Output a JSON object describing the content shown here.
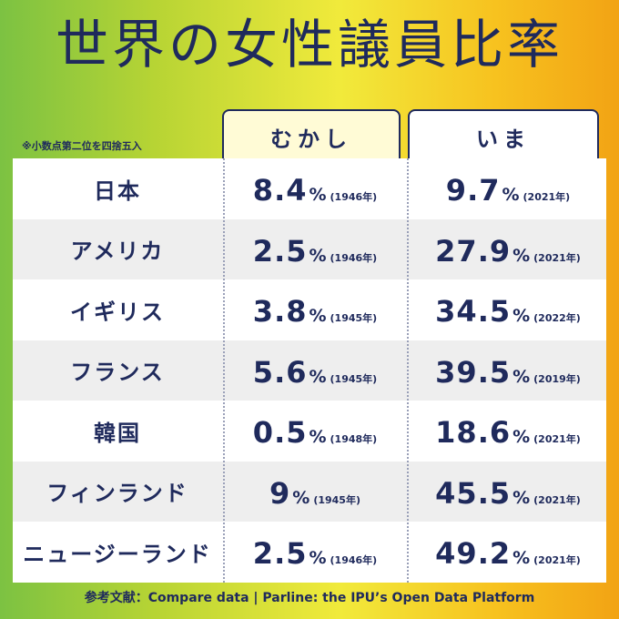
{
  "title": "世界の女性議員比率",
  "note": "※小数点第二位を四捨五入",
  "columns": {
    "then": "むかし",
    "now": "いま"
  },
  "chart_data": {
    "type": "table",
    "columns": [
      "むかし",
      "いま"
    ],
    "rows": [
      {
        "country": "日本",
        "then": "8.4",
        "then_year": "(1946年)",
        "now": "9.7",
        "now_year": "(2021年)"
      },
      {
        "country": "アメリカ",
        "then": "2.5",
        "then_year": "(1946年)",
        "now": "27.9",
        "now_year": "(2021年)"
      },
      {
        "country": "イギリス",
        "then": "3.8",
        "then_year": "(1945年)",
        "now": "34.5",
        "now_year": "(2022年)"
      },
      {
        "country": "フランス",
        "then": "5.6",
        "then_year": "(1945年)",
        "now": "39.5",
        "now_year": "(2019年)"
      },
      {
        "country": "韓国",
        "then": "0.5",
        "then_year": "(1948年)",
        "now": "18.6",
        "now_year": "(2021年)"
      },
      {
        "country": "フィンランド",
        "then": "9",
        "then_year": "(1945年)",
        "now": "45.5",
        "now_year": "(2021年)"
      },
      {
        "country": "ニュージーランド",
        "then": "2.5",
        "then_year": "(1946年)",
        "now": "49.2",
        "now_year": "(2021年)"
      }
    ],
    "unit": "%"
  },
  "source": "参考文献：Compare data | Parline: the IPU’s Open Data Platform",
  "colors": {
    "navy": "#1f2a5c",
    "green": "#7cc242",
    "yellow": "#f1ea3b",
    "orange": "#f2a314"
  }
}
